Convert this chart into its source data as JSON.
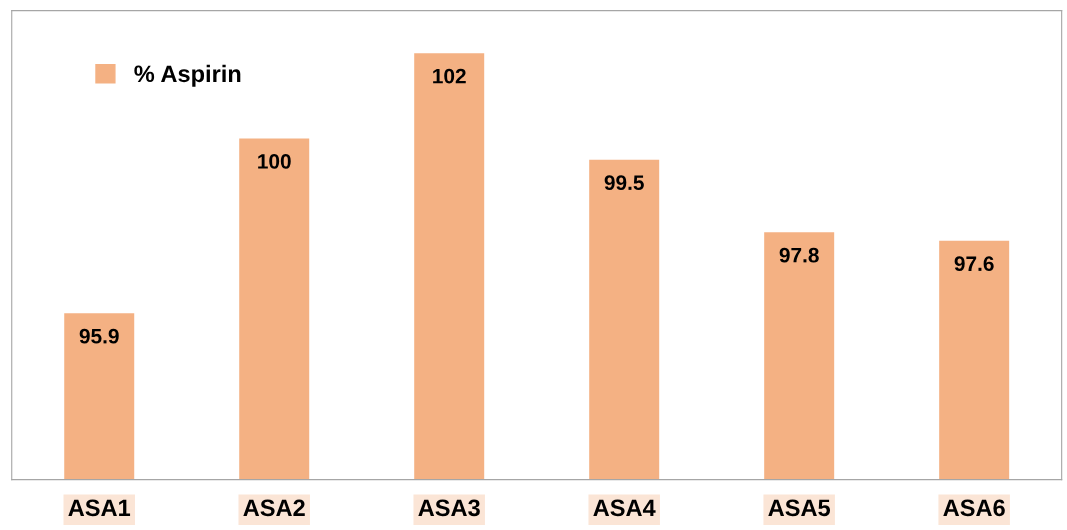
{
  "chart_data": {
    "type": "bar",
    "categories": [
      "ASA1",
      "ASA2",
      "ASA3",
      "ASA4",
      "ASA5",
      "ASA6"
    ],
    "series": [
      {
        "name": "% Aspirin",
        "color": "#f4b183",
        "values": [
          95.9,
          100,
          102,
          99.5,
          97.8,
          97.6
        ]
      }
    ],
    "ylim": [
      92,
      103
    ],
    "tick_labels": "x",
    "data_labels": true,
    "legend": "top left"
  }
}
